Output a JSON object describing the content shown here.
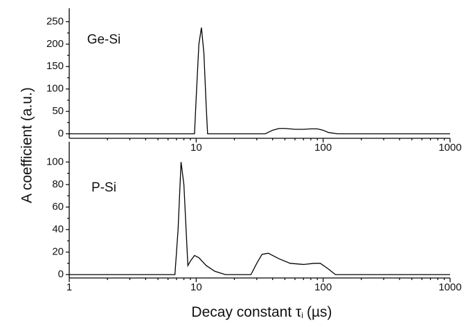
{
  "chart_data": [
    {
      "type": "line",
      "annotation": "Ge-Si",
      "ylabel": "A coefficient (a.u.)",
      "log_x": true,
      "x": [
        1,
        9.7,
        10,
        10.5,
        11,
        11.5,
        12,
        12.3,
        35,
        40,
        45,
        50,
        60,
        70,
        80,
        90,
        100,
        110,
        130,
        1000
      ],
      "series": [
        {
          "name": "Ge-Si",
          "color": "#000000",
          "values": [
            0,
            0,
            80,
            200,
            237,
            180,
            60,
            0,
            0,
            8,
            12,
            12,
            10,
            10,
            11,
            11,
            8,
            3,
            0,
            0
          ]
        }
      ],
      "xlim": [
        1,
        1000
      ],
      "xticks": [
        10,
        100,
        1000
      ],
      "ylim": [
        -10,
        280
      ],
      "yticks": [
        0,
        50,
        100,
        150,
        200,
        250
      ]
    },
    {
      "type": "line",
      "annotation": "P-Si",
      "xlabel": "Decay constant τ",
      "xlabel_sub": "i",
      "xlabel_unit": "(µs)",
      "log_x": true,
      "x": [
        1,
        6.8,
        7.2,
        7.6,
        8.0,
        8.6,
        9.0,
        9.7,
        10.5,
        12,
        14,
        17,
        27,
        30,
        33,
        37,
        45,
        55,
        70,
        85,
        95,
        110,
        125,
        1000
      ],
      "series": [
        {
          "name": "P-Si",
          "color": "#000000",
          "values": [
            0,
            0,
            40,
            100,
            80,
            8,
            12,
            17,
            15,
            8,
            3,
            0,
            0,
            10,
            18,
            19,
            14,
            10,
            9,
            10,
            10,
            5,
            0,
            0
          ]
        }
      ],
      "xlim": [
        1,
        1000
      ],
      "xticks": [
        1,
        10,
        100,
        1000
      ],
      "ylim": [
        -3,
        118
      ],
      "yticks": [
        0,
        20,
        40,
        60,
        80,
        100
      ]
    }
  ]
}
